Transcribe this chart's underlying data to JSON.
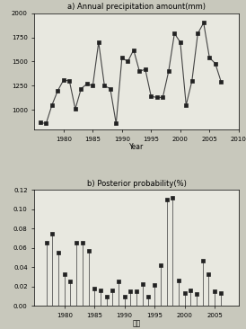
{
  "title_a": "a) Annual precipitation amount(mm)",
  "title_b": "b) Posterior probability(%)",
  "xlabel_a": "Year",
  "xlabel_b": "年度",
  "years": [
    1976,
    1977,
    1978,
    1979,
    1980,
    1981,
    1982,
    1983,
    1984,
    1985,
    1986,
    1987,
    1988,
    1989,
    1990,
    1991,
    1992,
    1993,
    1994,
    1995,
    1996,
    1997,
    1998,
    1999,
    2000,
    2001,
    2002,
    2003,
    2004,
    2005,
    2006,
    2007
  ],
  "precip": [
    870,
    860,
    1050,
    1200,
    1310,
    1300,
    1010,
    1220,
    1270,
    1250,
    1700,
    1250,
    1220,
    860,
    1540,
    1500,
    1620,
    1400,
    1420,
    1140,
    1130,
    1130,
    1400,
    1790,
    1700,
    1050,
    1300,
    1790,
    1900,
    1540,
    1480,
    1290
  ],
  "prob_years": [
    1977,
    1978,
    1979,
    1980,
    1981,
    1982,
    1983,
    1984,
    1985,
    1986,
    1987,
    1988,
    1989,
    1990,
    1991,
    1992,
    1993,
    1994,
    1995,
    1996,
    1997,
    1998,
    1999,
    2000,
    2001,
    2002,
    2003,
    2004,
    2005,
    2006
  ],
  "prob": [
    0.065,
    0.075,
    0.055,
    0.033,
    0.025,
    0.065,
    0.065,
    0.057,
    0.018,
    0.016,
    0.01,
    0.016,
    0.025,
    0.01,
    0.015,
    0.015,
    0.023,
    0.01,
    0.022,
    0.042,
    0.11,
    0.112,
    0.026,
    0.013,
    0.016,
    0.012,
    0.047,
    0.033,
    0.015,
    0.013
  ],
  "ylim_a": [
    800,
    2000
  ],
  "ylim_b": [
    0.0,
    0.12
  ],
  "yticks_a": [
    1000,
    1250,
    1500,
    1750,
    2000
  ],
  "yticks_b": [
    0.0,
    0.02,
    0.04,
    0.06,
    0.08,
    0.1,
    0.12
  ],
  "xticks_a": [
    1980,
    1985,
    1990,
    1995,
    2000,
    2005,
    2010
  ],
  "xticks_b": [
    1980,
    1985,
    1990,
    1995,
    2000,
    2005
  ],
  "xlim_a": [
    1975,
    2010
  ],
  "xlim_b": [
    1975,
    2009
  ],
  "line_color": "#444444",
  "marker_color": "#222222",
  "stem_color": "#555555",
  "plot_bg": "#e8e8e0",
  "fig_bg": "#c8c8bc"
}
